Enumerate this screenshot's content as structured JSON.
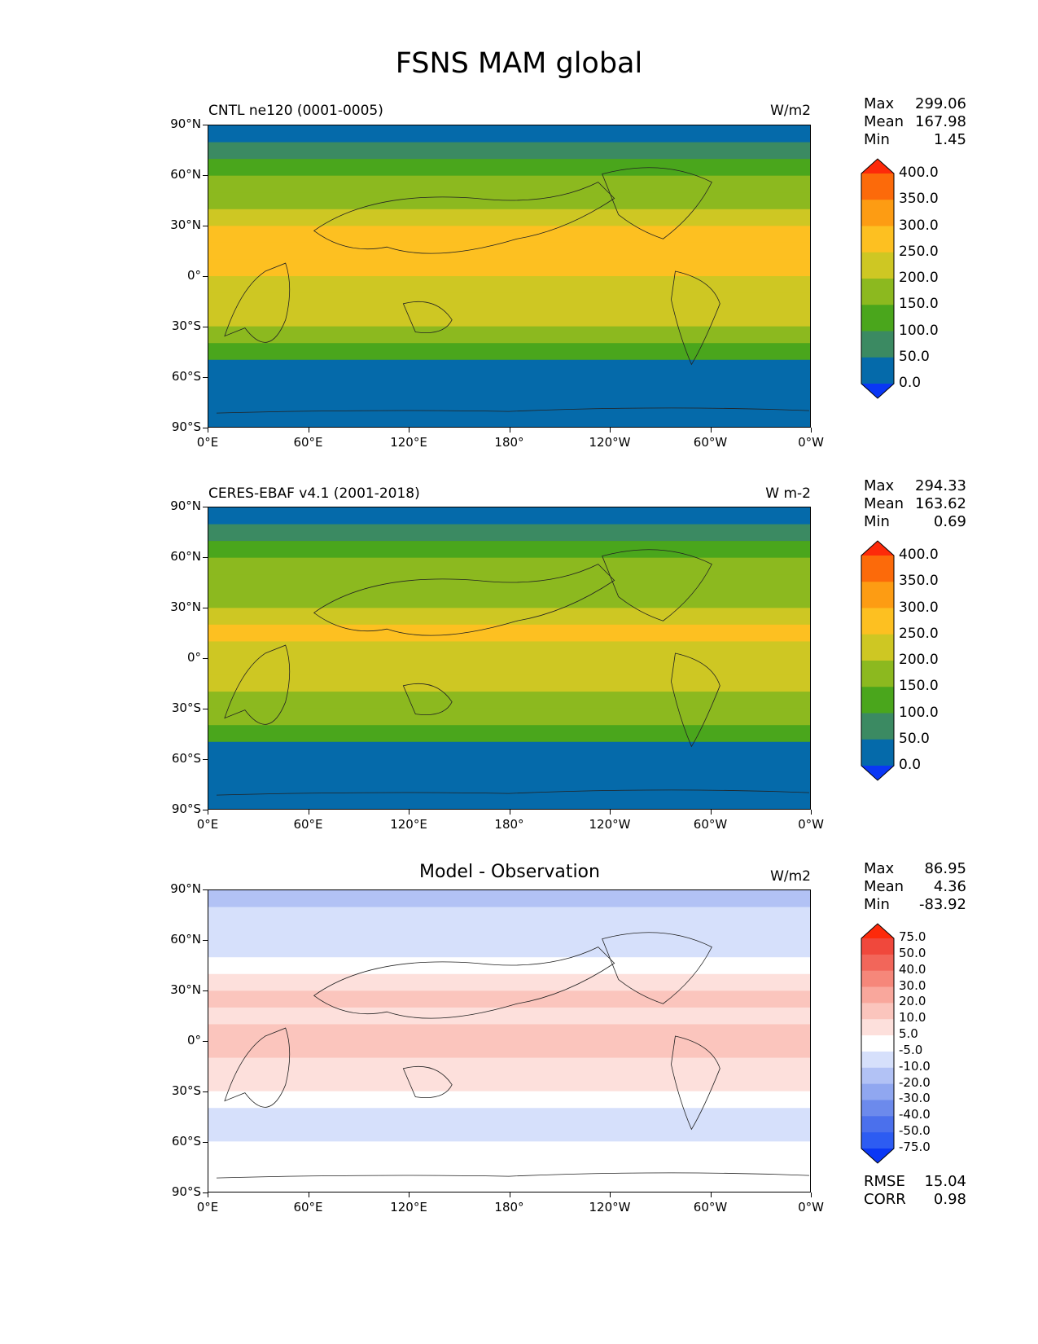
{
  "title": "FSNS MAM global",
  "panels": [
    {
      "title": "CNTL ne120 (0001-0005)",
      "units": "W/m2",
      "stats": [
        {
          "label": "Max",
          "value": "299.06"
        },
        {
          "label": "Mean",
          "value": "167.98"
        },
        {
          "label": "Min",
          "value": "1.45"
        }
      ]
    },
    {
      "title": "CERES-EBAF v4.1 (2001-2018)",
      "units": "W m-2",
      "stats": [
        {
          "label": "Max",
          "value": "294.33"
        },
        {
          "label": "Mean",
          "value": "163.62"
        },
        {
          "label": "Min",
          "value": "0.69"
        }
      ]
    },
    {
      "title": "Model - Observation",
      "units": "W/m2",
      "stats": [
        {
          "label": "Max",
          "value": "86.95"
        },
        {
          "label": "Mean",
          "value": "4.36"
        },
        {
          "label": "Min",
          "value": "-83.92"
        }
      ],
      "extra_stats": [
        {
          "label": "RMSE",
          "value": "15.04"
        },
        {
          "label": "CORR",
          "value": "0.98"
        }
      ]
    }
  ],
  "chart_data": [
    {
      "type": "heatmap",
      "title": "CNTL ne120 (0001-0005)",
      "units": "W/m2",
      "xlabels": [
        "0°E",
        "60°E",
        "120°E",
        "180°",
        "120°W",
        "60°W",
        "0°W"
      ],
      "ylabels": [
        "90°N",
        "60°N",
        "30°N",
        "0°",
        "30°S",
        "60°S",
        "90°S"
      ],
      "colorbar": {
        "levels": [
          "0.0",
          "50.0",
          "100.0",
          "150.0",
          "200.0",
          "250.0",
          "300.0",
          "350.0",
          "400.0"
        ],
        "colors": [
          "#0a37f5",
          "#056aaa",
          "#3b8a62",
          "#4aa61c",
          "#8cb91f",
          "#cec723",
          "#fdc021",
          "#fd9c13",
          "#fc6a0a",
          "#fd2a0a"
        ]
      },
      "zonal_bands": [
        {
          "lat": [
            90,
            80
          ],
          "level": 1
        },
        {
          "lat": [
            80,
            70
          ],
          "level": 2
        },
        {
          "lat": [
            70,
            60
          ],
          "level": 3
        },
        {
          "lat": [
            60,
            50
          ],
          "level": 4
        },
        {
          "lat": [
            50,
            40
          ],
          "level": 4
        },
        {
          "lat": [
            40,
            30
          ],
          "level": 5
        },
        {
          "lat": [
            30,
            20
          ],
          "level": 6
        },
        {
          "lat": [
            20,
            10
          ],
          "level": 6
        },
        {
          "lat": [
            10,
            0
          ],
          "level": 6
        },
        {
          "lat": [
            0,
            -10
          ],
          "level": 5
        },
        {
          "lat": [
            -10,
            -20
          ],
          "level": 5
        },
        {
          "lat": [
            -20,
            -30
          ],
          "level": 5
        },
        {
          "lat": [
            -30,
            -40
          ],
          "level": 4
        },
        {
          "lat": [
            -40,
            -50
          ],
          "level": 3
        },
        {
          "lat": [
            -50,
            -90
          ],
          "level": 1
        }
      ]
    },
    {
      "type": "heatmap",
      "title": "CERES-EBAF v4.1 (2001-2018)",
      "units": "W m-2",
      "xlabels": [
        "0°E",
        "60°E",
        "120°E",
        "180°",
        "120°W",
        "60°W",
        "0°W"
      ],
      "ylabels": [
        "90°N",
        "60°N",
        "30°N",
        "0°",
        "30°S",
        "60°S",
        "90°S"
      ],
      "colorbar": {
        "levels": [
          "0.0",
          "50.0",
          "100.0",
          "150.0",
          "200.0",
          "250.0",
          "300.0",
          "350.0",
          "400.0"
        ],
        "colors": [
          "#0a37f5",
          "#056aaa",
          "#3b8a62",
          "#4aa61c",
          "#8cb91f",
          "#cec723",
          "#fdc021",
          "#fd9c13",
          "#fc6a0a",
          "#fd2a0a"
        ]
      },
      "zonal_bands": [
        {
          "lat": [
            90,
            80
          ],
          "level": 1
        },
        {
          "lat": [
            80,
            70
          ],
          "level": 2
        },
        {
          "lat": [
            70,
            60
          ],
          "level": 3
        },
        {
          "lat": [
            60,
            50
          ],
          "level": 4
        },
        {
          "lat": [
            50,
            40
          ],
          "level": 4
        },
        {
          "lat": [
            40,
            30
          ],
          "level": 4
        },
        {
          "lat": [
            30,
            20
          ],
          "level": 5
        },
        {
          "lat": [
            20,
            10
          ],
          "level": 6
        },
        {
          "lat": [
            10,
            0
          ],
          "level": 5
        },
        {
          "lat": [
            0,
            -10
          ],
          "level": 5
        },
        {
          "lat": [
            -10,
            -20
          ],
          "level": 5
        },
        {
          "lat": [
            -20,
            -30
          ],
          "level": 4
        },
        {
          "lat": [
            -30,
            -40
          ],
          "level": 4
        },
        {
          "lat": [
            -40,
            -50
          ],
          "level": 3
        },
        {
          "lat": [
            -50,
            -90
          ],
          "level": 1
        }
      ]
    },
    {
      "type": "heatmap",
      "title": "Model - Observation",
      "units": "W/m2",
      "xlabels": [
        "0°E",
        "60°E",
        "120°E",
        "180°",
        "120°W",
        "60°W",
        "0°W"
      ],
      "ylabels": [
        "90°N",
        "60°N",
        "30°N",
        "0°",
        "30°S",
        "60°S",
        "90°S"
      ],
      "colorbar": {
        "levels": [
          "-75.0",
          "-50.0",
          "-40.0",
          "-30.0",
          "-20.0",
          "-10.0",
          "-5.0",
          "5.0",
          "10.0",
          "20.0",
          "30.0",
          "40.0",
          "50.0",
          "75.0"
        ],
        "colors": [
          "#0a37f5",
          "#2d5cf2",
          "#4b70ec",
          "#6c8aec",
          "#90a7f0",
          "#b2c2f5",
          "#d6e0fb",
          "#ffffff",
          "#fde0dc",
          "#fbc5bd",
          "#f9a79c",
          "#f6877a",
          "#f2665a",
          "#f0483c",
          "#fd2a0a"
        ]
      },
      "zonal_bands": [
        {
          "lat": [
            90,
            80
          ],
          "level": 5
        },
        {
          "lat": [
            80,
            70
          ],
          "level": 6
        },
        {
          "lat": [
            70,
            60
          ],
          "level": 6
        },
        {
          "lat": [
            60,
            50
          ],
          "level": 6
        },
        {
          "lat": [
            50,
            40
          ],
          "level": 7
        },
        {
          "lat": [
            40,
            30
          ],
          "level": 8
        },
        {
          "lat": [
            30,
            20
          ],
          "level": 9
        },
        {
          "lat": [
            20,
            10
          ],
          "level": 8
        },
        {
          "lat": [
            10,
            0
          ],
          "level": 9
        },
        {
          "lat": [
            0,
            -10
          ],
          "level": 9
        },
        {
          "lat": [
            -10,
            -20
          ],
          "level": 8
        },
        {
          "lat": [
            -20,
            -30
          ],
          "level": 8
        },
        {
          "lat": [
            -30,
            -40
          ],
          "level": 7
        },
        {
          "lat": [
            -40,
            -50
          ],
          "level": 6
        },
        {
          "lat": [
            -50,
            -60
          ],
          "level": 6
        },
        {
          "lat": [
            -60,
            -90
          ],
          "level": 7
        }
      ]
    }
  ]
}
